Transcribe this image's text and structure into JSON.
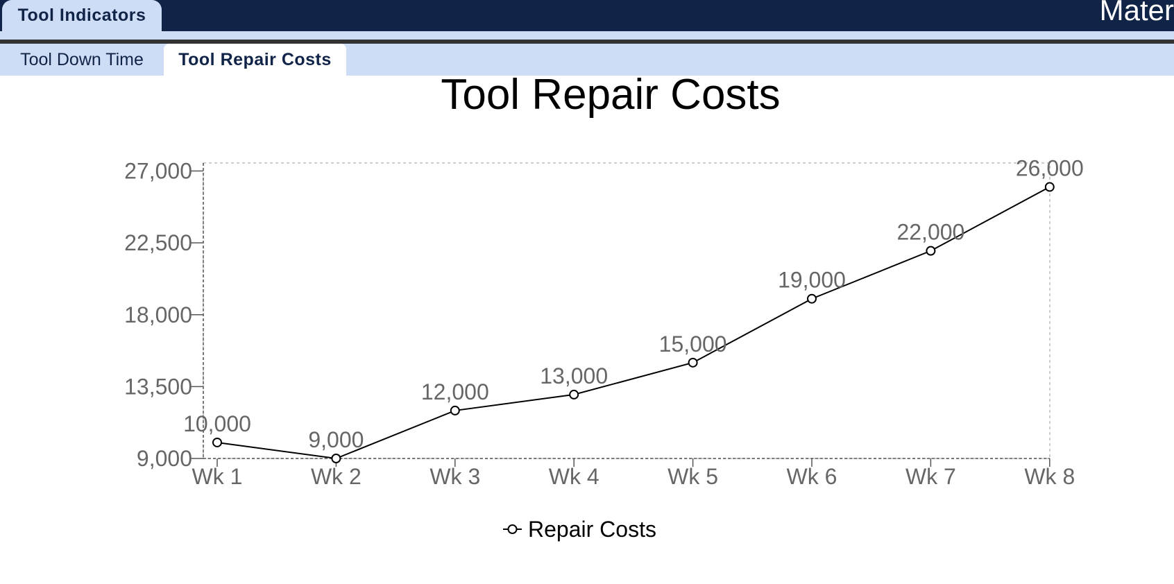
{
  "header": {
    "tab_label": "Tool Indicators",
    "right_title": "Mater"
  },
  "subtabs": [
    {
      "label": "Tool Down Time",
      "active": false
    },
    {
      "label": "Tool Repair Costs",
      "active": true
    }
  ],
  "colors": {
    "header_bg": "#102448",
    "tab_bg": "#cfdcf6",
    "line": "#000000",
    "label": "#666666"
  },
  "chart_data": {
    "type": "line",
    "title": "Tool Repair Costs",
    "categories": [
      "Wk 1",
      "Wk 2",
      "Wk 3",
      "Wk 4",
      "Wk 5",
      "Wk 6",
      "Wk 7",
      "Wk 8"
    ],
    "series": [
      {
        "name": "Repair Costs",
        "values": [
          10000,
          9000,
          12000,
          13000,
          15000,
          19000,
          22000,
          26000
        ]
      }
    ],
    "data_labels": [
      "10,000",
      "9,000",
      "12,000",
      "13,000",
      "15,000",
      "19,000",
      "22,000",
      "26,000"
    ],
    "yticks": [
      9000,
      13500,
      18000,
      22500,
      27000
    ],
    "ytick_labels": [
      "9,000",
      "13,500",
      "18,000",
      "22,500",
      "27,000"
    ],
    "ylim": [
      9000,
      27500
    ],
    "legend": "bottom-center",
    "grid": false
  }
}
